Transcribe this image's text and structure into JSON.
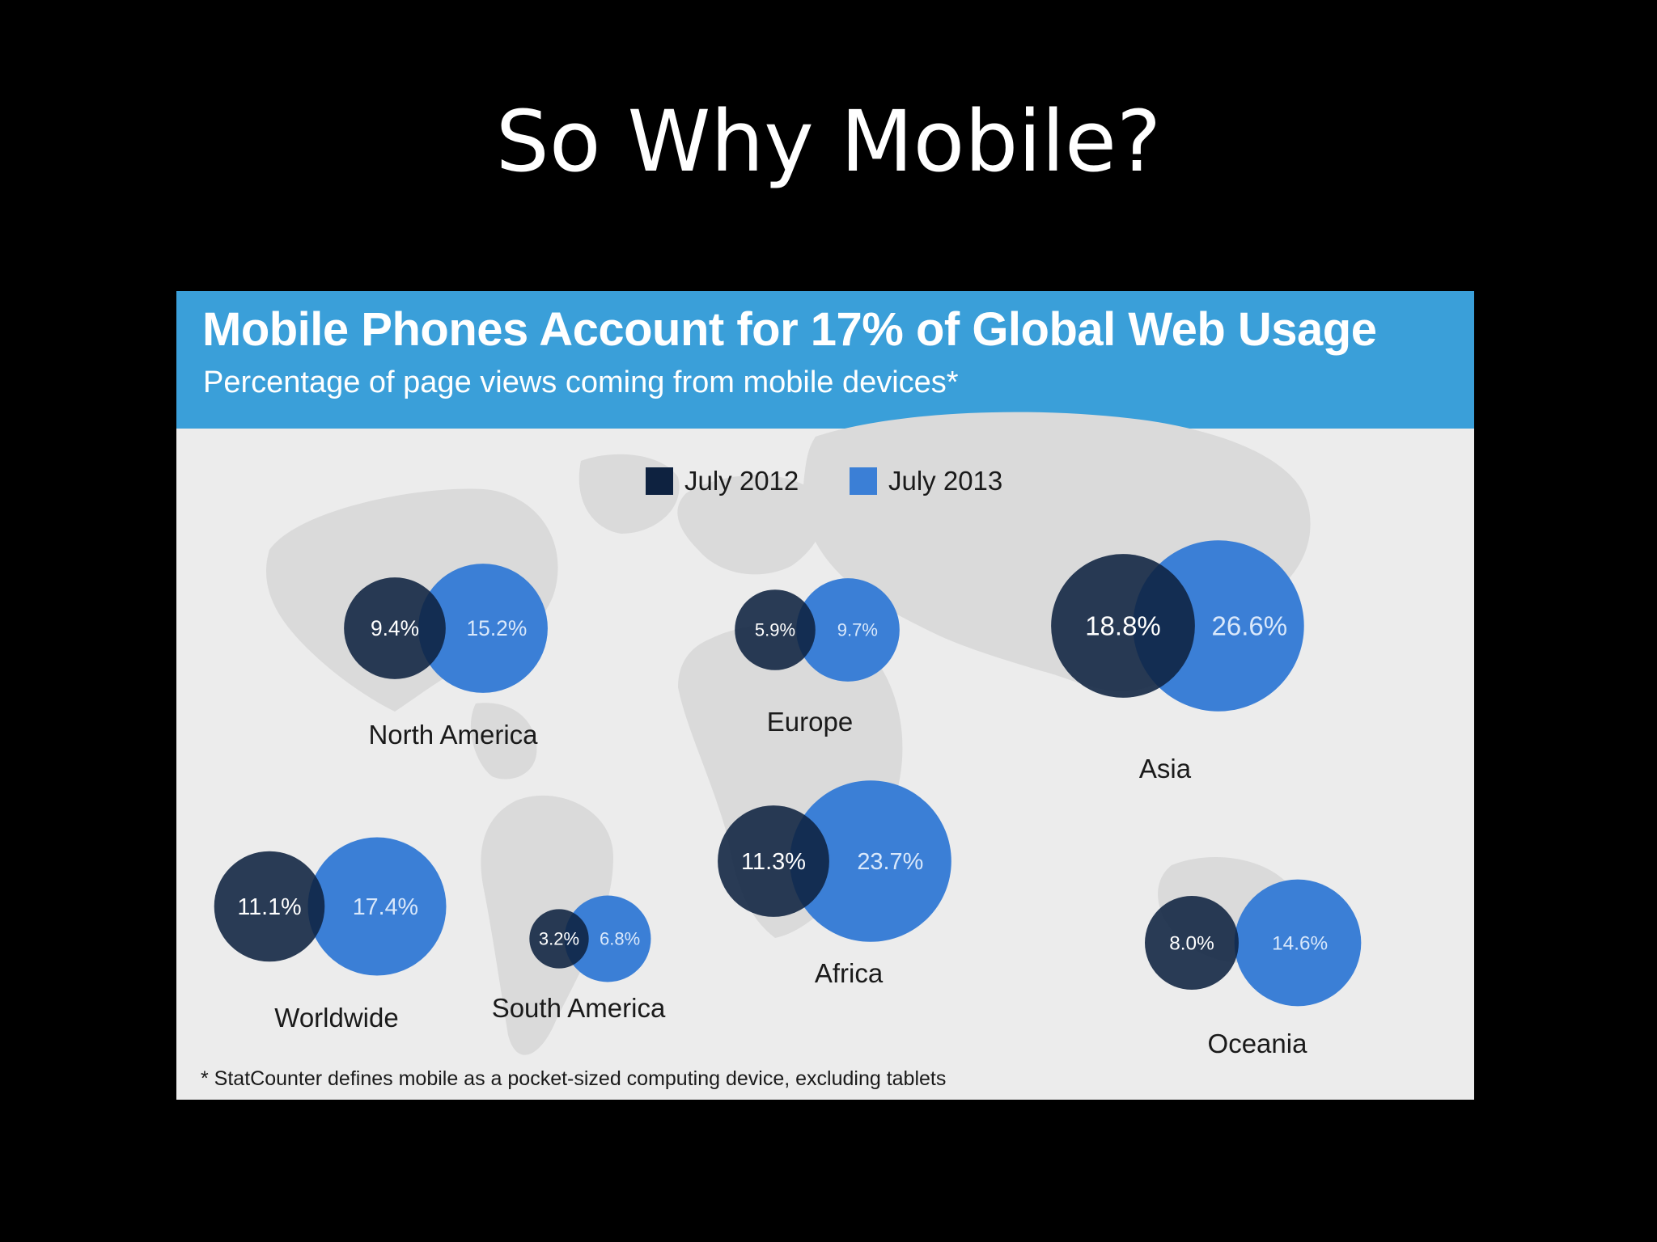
{
  "slide": {
    "title": "So Why Mobile?"
  },
  "colors": {
    "background": "#000000",
    "banner": "#3a9fd9",
    "panel": "#ececec",
    "series_2012": "#0e2240",
    "series_2013": "#3b7fd6"
  },
  "chart_data": {
    "type": "bubble",
    "title": "Mobile Phones Account for 17% of Global Web Usage",
    "subtitle": "Percentage of page views coming from mobile devices*",
    "legend": {
      "placement": "top-center",
      "entries": [
        "July 2012",
        "July 2013"
      ]
    },
    "series": [
      {
        "name": "July 2012",
        "values": [
          9.4,
          5.9,
          18.8,
          11.1,
          3.2,
          11.3,
          8.0
        ]
      },
      {
        "name": "July 2013",
        "values": [
          15.2,
          9.7,
          26.6,
          17.4,
          6.8,
          23.7,
          14.6
        ]
      }
    ],
    "categories": [
      "North America",
      "Europe",
      "Asia",
      "Worldwide",
      "South America",
      "Africa",
      "Oceania"
    ],
    "labels": {
      "july_2012": [
        "9.4%",
        "5.9%",
        "18.8%",
        "11.1%",
        "3.2%",
        "11.3%",
        "8.0%"
      ],
      "july_2013": [
        "15.2%",
        "9.7%",
        "26.6%",
        "17.4%",
        "6.8%",
        "23.7%",
        "14.6%"
      ]
    },
    "footnote": "* StatCounter defines mobile as a pocket-sized computing device, excluding tablets"
  }
}
